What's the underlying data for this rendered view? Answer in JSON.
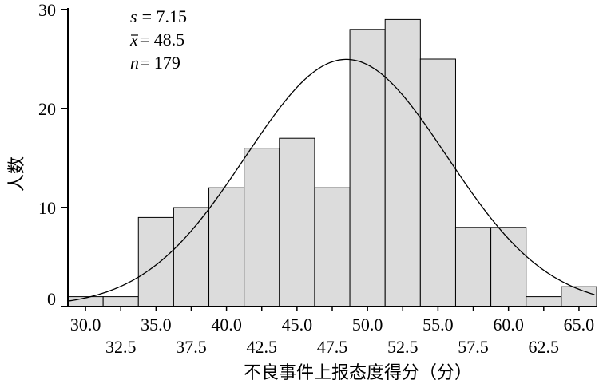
{
  "chart_data": {
    "type": "bar",
    "title": "",
    "xlabel": "不良事件上报态度得分（分）",
    "ylabel": "人数",
    "xlim": [
      28.75,
      66.25
    ],
    "ylim": [
      0,
      30
    ],
    "yticks": [
      "0",
      "10",
      "20",
      "30"
    ],
    "xticks_row1": [
      "30.0",
      "35.0",
      "40.0",
      "45.0",
      "50.0",
      "55.0",
      "60.0",
      "65.0"
    ],
    "xticks_row2": [
      "32.5",
      "37.5",
      "42.5",
      "47.5",
      "52.5",
      "57.5",
      "62.5"
    ],
    "bin_width": 2.5,
    "bins": [
      {
        "center": 30.0,
        "count": 1
      },
      {
        "center": 32.5,
        "count": 1
      },
      {
        "center": 35.0,
        "count": 9
      },
      {
        "center": 37.5,
        "count": 10
      },
      {
        "center": 40.0,
        "count": 12
      },
      {
        "center": 42.5,
        "count": 16
      },
      {
        "center": 45.0,
        "count": 17
      },
      {
        "center": 47.5,
        "count": 12
      },
      {
        "center": 50.0,
        "count": 28
      },
      {
        "center": 52.5,
        "count": 29
      },
      {
        "center": 55.0,
        "count": 25
      },
      {
        "center": 57.5,
        "count": 8
      },
      {
        "center": 60.0,
        "count": 8
      },
      {
        "center": 62.5,
        "count": 1
      },
      {
        "center": 65.0,
        "count": 2
      }
    ],
    "normal_curve": {
      "mean": 48.5,
      "sd": 7.15,
      "n": 179
    },
    "stats": {
      "s_label": "s",
      "s_value": "= 7.15",
      "mean_label": "x",
      "mean_value": "= 48.5",
      "n_label": "n",
      "n_value": "= 179"
    },
    "bar_fill": "#dcdcdc",
    "bar_stroke": "#000000",
    "curve_color": "#000000"
  }
}
